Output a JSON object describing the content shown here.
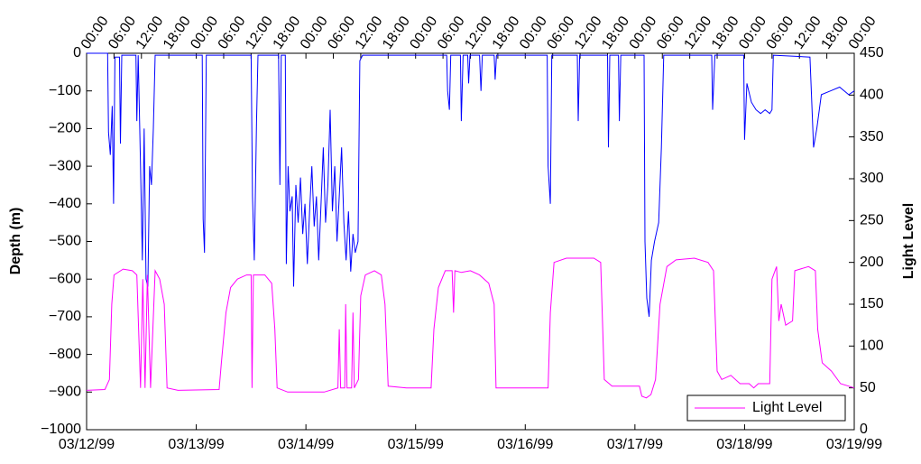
{
  "chart_data": {
    "type": "line",
    "y_label": "Depth (m)",
    "y2_label": "Light Level",
    "xlim": [
      0,
      168
    ],
    "xticks": [
      {
        "value": 0,
        "label": "03/12/99"
      },
      {
        "value": 24,
        "label": "03/13/99"
      },
      {
        "value": 48,
        "label": "03/14/99"
      },
      {
        "value": 72,
        "label": "03/15/99"
      },
      {
        "value": 96,
        "label": "03/16/99"
      },
      {
        "value": 120,
        "label": "03/17/99"
      },
      {
        "value": 144,
        "label": "03/18/99"
      },
      {
        "value": 168,
        "label": "03/19/99"
      }
    ],
    "x2ticks": [
      {
        "value": 0,
        "label": "00:00"
      },
      {
        "value": 6,
        "label": "06:00"
      },
      {
        "value": 12,
        "label": "12:00"
      },
      {
        "value": 18,
        "label": "18:00"
      },
      {
        "value": 24,
        "label": "00:00"
      },
      {
        "value": 30,
        "label": "06:00"
      },
      {
        "value": 36,
        "label": "12:00"
      },
      {
        "value": 42,
        "label": "18:00"
      },
      {
        "value": 48,
        "label": "00:00"
      },
      {
        "value": 54,
        "label": "06:00"
      },
      {
        "value": 60,
        "label": "12:00"
      },
      {
        "value": 66,
        "label": "18:00"
      },
      {
        "value": 72,
        "label": "00:00"
      },
      {
        "value": 78,
        "label": "06:00"
      },
      {
        "value": 84,
        "label": "12:00"
      },
      {
        "value": 90,
        "label": "18:00"
      },
      {
        "value": 96,
        "label": "00:00"
      },
      {
        "value": 102,
        "label": "06:00"
      },
      {
        "value": 108,
        "label": "12:00"
      },
      {
        "value": 114,
        "label": "18:00"
      },
      {
        "value": 120,
        "label": "00:00"
      },
      {
        "value": 126,
        "label": "06:00"
      },
      {
        "value": 132,
        "label": "12:00"
      },
      {
        "value": 138,
        "label": "18:00"
      },
      {
        "value": 144,
        "label": "00:00"
      },
      {
        "value": 150,
        "label": "06:00"
      },
      {
        "value": 156,
        "label": "12:00"
      },
      {
        "value": 162,
        "label": "18:00"
      },
      {
        "value": 168,
        "label": "00:00"
      }
    ],
    "ylim": [
      -1000,
      0
    ],
    "yticks": [
      {
        "value": -1000,
        "label": "−1000"
      },
      {
        "value": -900,
        "label": "−900"
      },
      {
        "value": -800,
        "label": "−800"
      },
      {
        "value": -700,
        "label": "−700"
      },
      {
        "value": -600,
        "label": "−600"
      },
      {
        "value": -500,
        "label": "−500"
      },
      {
        "value": -400,
        "label": "−400"
      },
      {
        "value": -300,
        "label": "−300"
      },
      {
        "value": -200,
        "label": "−200"
      },
      {
        "value": -100,
        "label": "−100"
      },
      0
    ],
    "y2lim": [
      0,
      450
    ],
    "y2ticks": [
      0,
      50,
      100,
      150,
      200,
      250,
      300,
      350,
      400,
      450
    ],
    "legend": "lower right",
    "series": [
      {
        "color": "#0000ff",
        "axis": "y",
        "x": [
          0,
          4.6,
          4.8,
          5.2,
          5.6,
          5.9,
          6.2,
          7.2,
          7.4,
          7.7,
          10.8,
          11.0,
          11.3,
          11.8,
          12.2,
          12.6,
          13.0,
          13.4,
          13.8,
          14.2,
          14.6,
          15.0,
          25.3,
          25.5,
          25.8,
          26.2,
          36.0,
          36.3,
          36.7,
          37.2,
          37.5,
          42.0,
          42.3,
          42.6,
          43.5,
          43.7,
          44.1,
          44.5,
          45.0,
          45.3,
          45.8,
          46.3,
          46.8,
          47.3,
          47.8,
          48.3,
          48.8,
          49.3,
          49.8,
          50.3,
          50.8,
          51.3,
          51.8,
          52.3,
          52.8,
          53.3,
          53.8,
          54.3,
          54.8,
          55.3,
          55.8,
          56.3,
          56.8,
          57.3,
          57.8,
          58.3,
          58.8,
          59.4,
          59.8,
          60.4,
          78.8,
          79.0,
          79.4,
          79.7,
          81.8,
          82.0,
          82.4,
          83.4,
          83.6,
          83.9,
          86.0,
          86.3,
          86.6,
          89.2,
          89.4,
          89.7,
          100.8,
          101.0,
          101.5,
          101.8,
          107.4,
          107.6,
          107.9,
          114.0,
          114.2,
          114.5,
          116.4,
          116.6,
          116.9,
          122.0,
          122.2,
          122.6,
          123.1,
          123.6,
          124.3,
          125.2,
          125.8,
          126.3,
          136.8,
          137.0,
          137.5,
          143.8,
          144.0,
          144.5,
          145.5,
          146.5,
          147.5,
          148.5,
          149.5,
          150.0,
          150.3,
          158.3,
          158.6,
          159.1,
          159.8,
          160.8,
          162.8,
          164.8,
          166.8,
          168
        ],
        "values": [
          0,
          0,
          -210,
          -270,
          -140,
          -400,
          -10,
          -10,
          -240,
          -5,
          -5,
          -180,
          -5,
          -300,
          -550,
          -200,
          -600,
          -620,
          -300,
          -350,
          -200,
          -5,
          -5,
          -440,
          -530,
          -5,
          -5,
          -380,
          -550,
          -180,
          -5,
          -5,
          -350,
          -5,
          -5,
          -560,
          -300,
          -420,
          -380,
          -620,
          -350,
          -450,
          -330,
          -480,
          -400,
          -560,
          -420,
          -300,
          -460,
          -380,
          -550,
          -400,
          -250,
          -450,
          -350,
          -150,
          -420,
          -300,
          -500,
          -380,
          -250,
          -450,
          -550,
          -420,
          -580,
          -480,
          -530,
          -500,
          -20,
          -5,
          -5,
          -100,
          -150,
          -5,
          -5,
          -180,
          -5,
          -5,
          -80,
          -5,
          -5,
          -100,
          -5,
          -5,
          -70,
          -5,
          -5,
          -300,
          -400,
          -5,
          -5,
          -180,
          -5,
          -5,
          -250,
          -5,
          -5,
          -180,
          -5,
          -5,
          -500,
          -650,
          -700,
          -550,
          -500,
          -450,
          -250,
          -5,
          -5,
          -150,
          -5,
          -5,
          -230,
          -80,
          -130,
          -150,
          -160,
          -150,
          -160,
          -150,
          -5,
          -10,
          -100,
          -250,
          -200,
          -110,
          -100,
          -90,
          -110,
          -100
        ]
      },
      {
        "name": "Light Level",
        "color": "#ff00ff",
        "axis": "y2",
        "x": [
          0,
          4,
          5,
          5.5,
          6,
          8,
          10,
          11,
          11.8,
          12.3,
          12.8,
          13.3,
          14,
          15,
          16,
          17,
          17.6,
          20,
          29,
          29.5,
          30.5,
          31.5,
          33,
          35,
          36,
          36.2,
          36.5,
          39,
          40.5,
          41.2,
          41.7,
          44,
          52,
          55,
          55.3,
          55.6,
          56.5,
          56.7,
          57,
          58,
          58.3,
          58.6,
          59.5,
          60,
          61,
          63,
          64.5,
          65.3,
          66,
          70,
          75.4,
          76,
          77,
          78.5,
          80,
          80.3,
          80.6,
          82,
          84,
          86,
          88,
          89.2,
          89.6,
          95,
          101,
          101.5,
          102.3,
          105,
          108,
          111,
          112.5,
          113.3,
          115,
          121,
          121.5,
          122.5,
          123.5,
          124.5,
          125.5,
          127,
          129,
          133,
          136,
          137.2,
          138,
          139,
          141,
          143,
          145,
          146,
          147,
          149.5,
          150,
          151,
          151.5,
          152,
          153,
          154.5,
          155,
          158,
          159.5,
          160,
          161,
          163,
          165,
          168
        ],
        "values": [
          47,
          48,
          60,
          150,
          185,
          192,
          190,
          185,
          50,
          180,
          50,
          185,
          50,
          190,
          180,
          150,
          50,
          47,
          48,
          80,
          140,
          170,
          180,
          185,
          185,
          50,
          185,
          185,
          175,
          120,
          50,
          45,
          45,
          50,
          120,
          50,
          50,
          150,
          50,
          50,
          140,
          50,
          60,
          160,
          185,
          190,
          185,
          150,
          52,
          50,
          50,
          120,
          170,
          190,
          190,
          140,
          190,
          188,
          190,
          185,
          175,
          150,
          50,
          50,
          50,
          140,
          200,
          205,
          205,
          205,
          200,
          60,
          52,
          52,
          40,
          38,
          42,
          60,
          150,
          195,
          203,
          205,
          200,
          190,
          70,
          60,
          65,
          55,
          55,
          50,
          55,
          55,
          180,
          195,
          130,
          150,
          125,
          130,
          190,
          195,
          190,
          120,
          80,
          70,
          55,
          50
        ]
      }
    ]
  }
}
